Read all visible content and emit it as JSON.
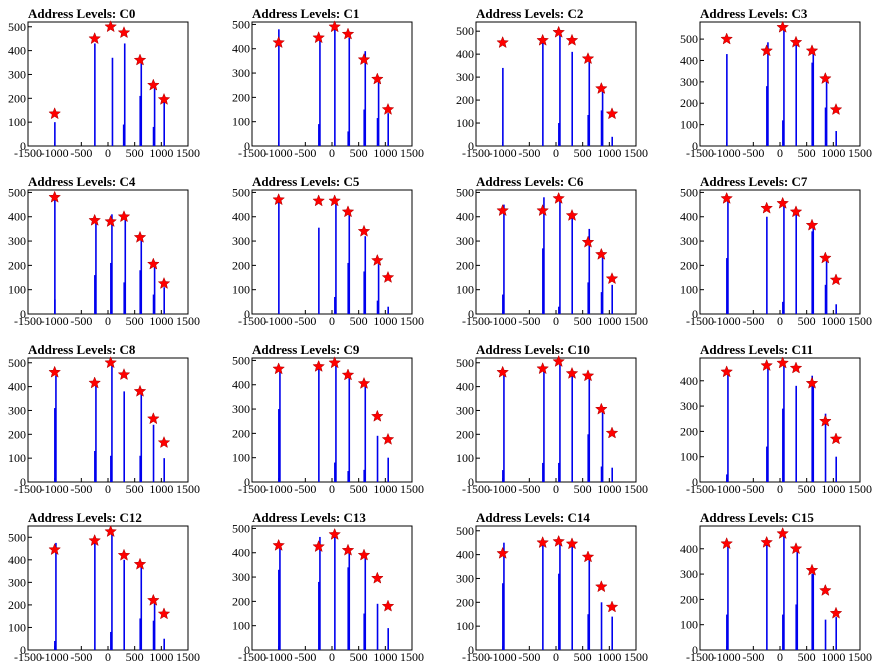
{
  "figure": {
    "title_prefix": "Address Levels: ",
    "x_ticks": [
      -1500,
      -1000,
      -500,
      0,
      500,
      1000,
      1500
    ],
    "xlim": [
      -1500,
      1500
    ],
    "peak_x": [
      -1000,
      -250,
      50,
      300,
      600,
      850,
      1050
    ],
    "colors": {
      "bars": "#0000ee",
      "stars": "#ff0000"
    }
  },
  "chart_data": [
    {
      "type": "bar",
      "title": "Address Levels: C0",
      "ylim": [
        0,
        520
      ],
      "y_ticks": [
        0,
        100,
        200,
        300,
        400,
        500
      ],
      "x": [
        -1000,
        -250,
        50,
        300,
        600,
        850,
        1050
      ],
      "peaks": [
        135,
        450,
        500,
        475,
        360,
        255,
        195
      ],
      "bars": [
        [
          -1000,
          100
        ],
        [
          -250,
          430
        ],
        [
          80,
          370
        ],
        [
          290,
          90
        ],
        [
          310,
          430
        ],
        [
          600,
          210
        ],
        [
          620,
          360
        ],
        [
          850,
          80
        ],
        [
          870,
          255
        ],
        [
          1050,
          190
        ]
      ]
    },
    {
      "type": "bar",
      "title": "Address Levels: C1",
      "ylim": [
        0,
        510
      ],
      "y_ticks": [
        0,
        100,
        200,
        300,
        400,
        500
      ],
      "x": [
        -1000,
        -250,
        50,
        300,
        600,
        850,
        1050
      ],
      "peaks": [
        425,
        445,
        490,
        460,
        355,
        275,
        150
      ],
      "bars": [
        [
          -1000,
          480
        ],
        [
          -250,
          90
        ],
        [
          -230,
          440
        ],
        [
          50,
          480
        ],
        [
          300,
          60
        ],
        [
          320,
          445
        ],
        [
          600,
          150
        ],
        [
          620,
          390
        ],
        [
          850,
          115
        ],
        [
          870,
          280
        ],
        [
          1050,
          135
        ]
      ]
    },
    {
      "type": "bar",
      "title": "Address Levels: C2",
      "ylim": [
        0,
        540
      ],
      "y_ticks": [
        0,
        100,
        200,
        300,
        400,
        500
      ],
      "x": [
        -1000,
        -250,
        50,
        300,
        600,
        850,
        1050
      ],
      "peaks": [
        450,
        460,
        495,
        460,
        380,
        250,
        140
      ],
      "bars": [
        [
          -1000,
          340
        ],
        [
          -250,
          460
        ],
        [
          50,
          100
        ],
        [
          70,
          500
        ],
        [
          300,
          410
        ],
        [
          600,
          135
        ],
        [
          620,
          380
        ],
        [
          850,
          155
        ],
        [
          870,
          255
        ],
        [
          1050,
          40
        ]
      ]
    },
    {
      "type": "bar",
      "title": "Address Levels: C3",
      "ylim": [
        0,
        580
      ],
      "y_ticks": [
        0,
        100,
        200,
        300,
        400,
        500
      ],
      "x": [
        -1000,
        -250,
        50,
        300,
        600,
        850,
        1050
      ],
      "peaks": [
        500,
        445,
        555,
        485,
        445,
        315,
        170
      ],
      "bars": [
        [
          -1000,
          430
        ],
        [
          -250,
          280
        ],
        [
          -230,
          485
        ],
        [
          50,
          120
        ],
        [
          70,
          550
        ],
        [
          300,
          475
        ],
        [
          600,
          390
        ],
        [
          620,
          450
        ],
        [
          850,
          180
        ],
        [
          870,
          325
        ],
        [
          1050,
          70
        ]
      ]
    },
    {
      "type": "bar",
      "title": "Address Levels: C4",
      "ylim": [
        0,
        510
      ],
      "y_ticks": [
        0,
        100,
        200,
        300,
        400,
        500
      ],
      "x": [
        -1000,
        -250,
        50,
        300,
        600,
        850,
        1050
      ],
      "peaks": [
        480,
        385,
        380,
        400,
        315,
        205,
        125
      ],
      "bars": [
        [
          -1000,
          60
        ],
        [
          -1000,
          480
        ],
        [
          -250,
          160
        ],
        [
          -230,
          390
        ],
        [
          50,
          210
        ],
        [
          70,
          410
        ],
        [
          300,
          130
        ],
        [
          320,
          400
        ],
        [
          600,
          180
        ],
        [
          620,
          310
        ],
        [
          850,
          80
        ],
        [
          870,
          205
        ],
        [
          1050,
          110
        ]
      ]
    },
    {
      "type": "bar",
      "title": "Address Levels: C5",
      "ylim": [
        0,
        510
      ],
      "y_ticks": [
        0,
        100,
        200,
        300,
        400,
        500
      ],
      "x": [
        -1000,
        -250,
        50,
        300,
        600,
        850,
        1050
      ],
      "peaks": [
        470,
        465,
        465,
        420,
        340,
        220,
        150
      ],
      "bars": [
        [
          -1000,
          470
        ],
        [
          -250,
          355
        ],
        [
          50,
          70
        ],
        [
          70,
          465
        ],
        [
          300,
          210
        ],
        [
          320,
          420
        ],
        [
          600,
          175
        ],
        [
          620,
          320
        ],
        [
          850,
          55
        ],
        [
          870,
          205
        ],
        [
          1050,
          30
        ]
      ]
    },
    {
      "type": "bar",
      "title": "Address Levels: C6",
      "ylim": [
        0,
        510
      ],
      "y_ticks": [
        0,
        100,
        200,
        300,
        400,
        500
      ],
      "x": [
        -1000,
        -250,
        50,
        300,
        600,
        850,
        1050
      ],
      "peaks": [
        425,
        425,
        475,
        405,
        295,
        245,
        145
      ],
      "bars": [
        [
          -1000,
          80
        ],
        [
          -980,
          450
        ],
        [
          -250,
          270
        ],
        [
          -230,
          480
        ],
        [
          50,
          30
        ],
        [
          70,
          470
        ],
        [
          300,
          400
        ],
        [
          600,
          130
        ],
        [
          620,
          350
        ],
        [
          850,
          90
        ],
        [
          870,
          245
        ],
        [
          1050,
          120
        ]
      ]
    },
    {
      "type": "bar",
      "title": "Address Levels: C7",
      "ylim": [
        0,
        510
      ],
      "y_ticks": [
        0,
        100,
        200,
        300,
        400,
        500
      ],
      "x": [
        -1000,
        -250,
        50,
        300,
        600,
        850,
        1050
      ],
      "peaks": [
        475,
        435,
        455,
        420,
        365,
        230,
        140
      ],
      "bars": [
        [
          -1000,
          230
        ],
        [
          -980,
          480
        ],
        [
          -250,
          400
        ],
        [
          50,
          50
        ],
        [
          70,
          450
        ],
        [
          300,
          420
        ],
        [
          600,
          340
        ],
        [
          620,
          370
        ],
        [
          850,
          120
        ],
        [
          870,
          230
        ],
        [
          1050,
          40
        ]
      ]
    },
    {
      "type": "bar",
      "title": "Address Levels: C8",
      "ylim": [
        0,
        520
      ],
      "y_ticks": [
        0,
        100,
        200,
        300,
        400,
        500
      ],
      "x": [
        -1000,
        -250,
        50,
        300,
        600,
        850,
        1050
      ],
      "peaks": [
        460,
        415,
        500,
        450,
        380,
        265,
        165
      ],
      "bars": [
        [
          -1000,
          310
        ],
        [
          -980,
          445
        ],
        [
          -250,
          130
        ],
        [
          -230,
          420
        ],
        [
          50,
          110
        ],
        [
          70,
          495
        ],
        [
          300,
          380
        ],
        [
          600,
          110
        ],
        [
          620,
          385
        ],
        [
          850,
          240
        ],
        [
          1050,
          100
        ]
      ]
    },
    {
      "type": "bar",
      "title": "Address Levels: C9",
      "ylim": [
        0,
        510
      ],
      "y_ticks": [
        0,
        100,
        200,
        300,
        400,
        500
      ],
      "x": [
        -1000,
        -250,
        50,
        300,
        600,
        850,
        1050
      ],
      "peaks": [
        465,
        475,
        490,
        440,
        405,
        270,
        175
      ],
      "bars": [
        [
          -1000,
          300
        ],
        [
          -980,
          465
        ],
        [
          -250,
          475
        ],
        [
          50,
          80
        ],
        [
          70,
          490
        ],
        [
          300,
          45
        ],
        [
          320,
          440
        ],
        [
          600,
          50
        ],
        [
          620,
          400
        ],
        [
          850,
          190
        ],
        [
          1050,
          100
        ]
      ]
    },
    {
      "type": "bar",
      "title": "Address Levels: C10",
      "ylim": [
        0,
        520
      ],
      "y_ticks": [
        0,
        100,
        200,
        300,
        400,
        500
      ],
      "x": [
        -1000,
        -250,
        50,
        300,
        600,
        850,
        1050
      ],
      "peaks": [
        460,
        475,
        505,
        455,
        445,
        305,
        205
      ],
      "bars": [
        [
          -1000,
          50
        ],
        [
          -980,
          460
        ],
        [
          -250,
          80
        ],
        [
          -230,
          470
        ],
        [
          50,
          80
        ],
        [
          70,
          500
        ],
        [
          300,
          450
        ],
        [
          600,
          200
        ],
        [
          620,
          440
        ],
        [
          850,
          65
        ],
        [
          870,
          305
        ],
        [
          1050,
          60
        ]
      ]
    },
    {
      "type": "bar",
      "title": "Address Levels: C11",
      "ylim": [
        0,
        490
      ],
      "y_ticks": [
        0,
        100,
        200,
        300,
        400
      ],
      "x": [
        -1000,
        -250,
        50,
        300,
        600,
        850,
        1050
      ],
      "peaks": [
        435,
        460,
        470,
        450,
        390,
        240,
        170
      ],
      "bars": [
        [
          -1000,
          30
        ],
        [
          -980,
          430
        ],
        [
          -250,
          140
        ],
        [
          -230,
          460
        ],
        [
          50,
          290
        ],
        [
          70,
          470
        ],
        [
          300,
          380
        ],
        [
          600,
          420
        ],
        [
          620,
          390
        ],
        [
          850,
          270
        ],
        [
          1050,
          100
        ]
      ]
    },
    {
      "type": "bar",
      "title": "Address Levels: C12",
      "ylim": [
        0,
        550
      ],
      "y_ticks": [
        0,
        100,
        200,
        300,
        400,
        500
      ],
      "x": [
        -1000,
        -250,
        50,
        300,
        600,
        850,
        1050
      ],
      "peaks": [
        445,
        485,
        525,
        420,
        380,
        220,
        160
      ],
      "bars": [
        [
          -1000,
          40
        ],
        [
          -980,
          475
        ],
        [
          -250,
          480
        ],
        [
          50,
          80
        ],
        [
          70,
          525
        ],
        [
          300,
          400
        ],
        [
          600,
          140
        ],
        [
          620,
          370
        ],
        [
          850,
          130
        ],
        [
          870,
          210
        ],
        [
          1050,
          50
        ]
      ]
    },
    {
      "type": "bar",
      "title": "Address Levels: C13",
      "ylim": [
        0,
        510
      ],
      "y_ticks": [
        0,
        100,
        200,
        300,
        400,
        500
      ],
      "x": [
        -1000,
        -250,
        50,
        300,
        600,
        850,
        1050
      ],
      "peaks": [
        430,
        425,
        475,
        410,
        390,
        295,
        180
      ],
      "bars": [
        [
          -1000,
          330
        ],
        [
          -980,
          430
        ],
        [
          -250,
          280
        ],
        [
          -230,
          465
        ],
        [
          50,
          470
        ],
        [
          300,
          340
        ],
        [
          320,
          410
        ],
        [
          600,
          150
        ],
        [
          620,
          390
        ],
        [
          850,
          190
        ],
        [
          1050,
          90
        ]
      ]
    },
    {
      "type": "bar",
      "title": "Address Levels: C14",
      "ylim": [
        0,
        520
      ],
      "y_ticks": [
        0,
        100,
        200,
        300,
        400,
        500
      ],
      "x": [
        -1000,
        -250,
        50,
        300,
        600,
        850,
        1050
      ],
      "peaks": [
        405,
        450,
        455,
        445,
        390,
        265,
        180
      ],
      "bars": [
        [
          -1000,
          280
        ],
        [
          -980,
          450
        ],
        [
          -250,
          450
        ],
        [
          50,
          320
        ],
        [
          70,
          455
        ],
        [
          300,
          440
        ],
        [
          600,
          150
        ],
        [
          620,
          390
        ],
        [
          850,
          200
        ],
        [
          1050,
          140
        ]
      ]
    },
    {
      "type": "bar",
      "title": "Address Levels: C15",
      "ylim": [
        0,
        490
      ],
      "y_ticks": [
        0,
        100,
        200,
        300,
        400
      ],
      "x": [
        -1000,
        -250,
        50,
        300,
        600,
        850,
        1050
      ],
      "peaks": [
        420,
        425,
        460,
        400,
        315,
        235,
        145
      ],
      "bars": [
        [
          -1000,
          140
        ],
        [
          -980,
          420
        ],
        [
          -250,
          440
        ],
        [
          50,
          140
        ],
        [
          70,
          460
        ],
        [
          300,
          180
        ],
        [
          320,
          400
        ],
        [
          600,
          300
        ],
        [
          620,
          320
        ],
        [
          850,
          120
        ],
        [
          1050,
          130
        ]
      ]
    }
  ]
}
